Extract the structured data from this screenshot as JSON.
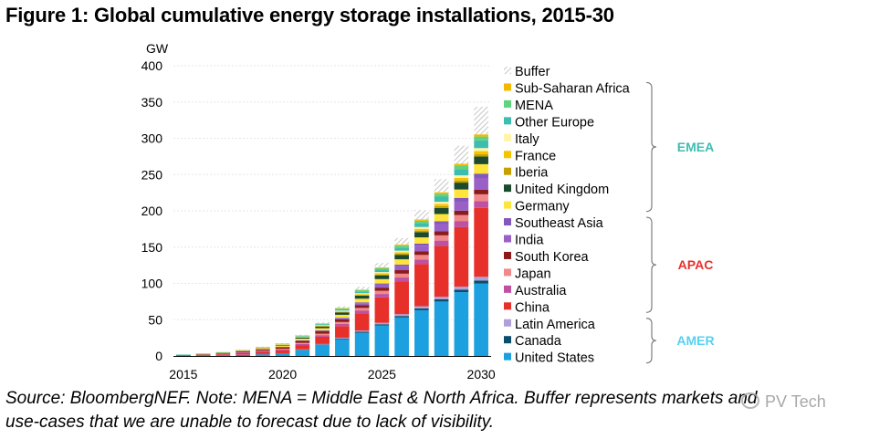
{
  "title": "Figure 1: Global cumulative energy storage installations, 2015-30",
  "caption": {
    "line1": "Source: BloombergNEF. Note: MENA = Middle East & North Africa. Buffer represents markets and",
    "line2": "use-cases that we are unable to forecast due to lack of visibility."
  },
  "watermark": "PV Tech",
  "colors": {
    "Buffer": "#d0d0d0",
    "Sub-Saharan Africa": "#f5b800",
    "MENA": "#5fd37e",
    "Other Europe": "#3dbdb0",
    "Italy": "#fff4a8",
    "France": "#f5c400",
    "Iberia": "#c7a000",
    "United Kingdom": "#1c4a2e",
    "Germany": "#ffe53b",
    "Southeast Asia": "#8458b8",
    "India": "#9a60c8",
    "South Korea": "#8b1a1a",
    "Japan": "#f08a8a",
    "Australia": "#c050a0",
    "China": "#e8302a",
    "Latin America": "#b0a0d8",
    "Canada": "#0a4e6a",
    "United States": "#1ca0e0",
    "EMEA": "#3dbdb0",
    "APAC": "#e8302a",
    "AMER": "#58d0f0"
  },
  "chart_data": {
    "type": "bar",
    "stacked": true,
    "ylabel": "GW",
    "ylim": [
      0,
      400
    ],
    "yticks": [
      0,
      50,
      100,
      150,
      200,
      250,
      300,
      350,
      400
    ],
    "categories": [
      "2015",
      "2016",
      "2017",
      "2018",
      "2019",
      "2020",
      "2021",
      "2022",
      "2023",
      "2024",
      "2025",
      "2026",
      "2027",
      "2028",
      "2029",
      "2030"
    ],
    "xtick_labels": [
      "2015",
      "2020",
      "2025",
      "2030"
    ],
    "grid": true,
    "legend_position": "right",
    "series": [
      {
        "name": "United States",
        "values": [
          0.6,
          0.9,
          1.2,
          1.5,
          2,
          3,
          8,
          15,
          23,
          32,
          42,
          53,
          63,
          75,
          88,
          100
        ]
      },
      {
        "name": "Canada",
        "values": [
          0.1,
          0.1,
          0.1,
          0.1,
          0.2,
          0.3,
          0.4,
          0.6,
          0.9,
          1.3,
          1.7,
          2.1,
          2.5,
          3,
          3.5,
          4
        ]
      },
      {
        "name": "Latin America",
        "values": [
          0.1,
          0.1,
          0.2,
          0.3,
          0.4,
          0.5,
          0.6,
          0.9,
          1.2,
          1.6,
          2,
          2.5,
          3,
          3.5,
          4,
          5
        ]
      },
      {
        "name": "China",
        "values": [
          0.3,
          0.5,
          1,
          2,
          3,
          4,
          6,
          10,
          16,
          24,
          35,
          45,
          58,
          70,
          82,
          95
        ]
      },
      {
        "name": "Australia",
        "values": [
          0.1,
          0.2,
          0.3,
          0.5,
          0.7,
          1,
          1.5,
          2.2,
          3,
          3.8,
          4.7,
          5.5,
          6.5,
          7.5,
          8.5,
          9.5
        ]
      },
      {
        "name": "Japan",
        "values": [
          0.2,
          0.3,
          0.4,
          0.6,
          0.8,
          1,
          1.5,
          2,
          2.7,
          3.5,
          4.4,
          5.3,
          6.2,
          7.2,
          8.2,
          9.3
        ]
      },
      {
        "name": "South Korea",
        "values": [
          0.1,
          0.3,
          0.6,
          1.5,
          2,
          2.3,
          2.8,
          3.2,
          3.6,
          4,
          4.4,
          4.8,
          5.2,
          5.6,
          6,
          6.5
        ]
      },
      {
        "name": "India",
        "values": [
          0,
          0,
          0,
          0.1,
          0.1,
          0.2,
          0.4,
          0.8,
          1.5,
          2.5,
          4,
          5.5,
          7.5,
          10,
          13,
          16
        ]
      },
      {
        "name": "Southeast Asia",
        "values": [
          0,
          0,
          0,
          0.1,
          0.1,
          0.2,
          0.3,
          0.5,
          0.8,
          1.2,
          1.7,
          2.3,
          3,
          3.8,
          4.7,
          6
        ]
      },
      {
        "name": "Germany",
        "values": [
          0.2,
          0.4,
          0.6,
          0.9,
          1.2,
          1.7,
          2.3,
          3,
          4,
          5,
          6,
          7.2,
          8.5,
          10,
          11.5,
          13
        ]
      },
      {
        "name": "United Kingdom",
        "values": [
          0.1,
          0.2,
          0.3,
          0.5,
          0.8,
          1.2,
          1.8,
          2.5,
          3.3,
          4.2,
          5.2,
          6.2,
          7.3,
          8.4,
          9.5,
          10.5
        ]
      },
      {
        "name": "Iberia",
        "values": [
          0,
          0,
          0,
          0,
          0.1,
          0.1,
          0.2,
          0.4,
          0.6,
          0.9,
          1.2,
          1.6,
          2,
          2.5,
          3,
          3.5
        ]
      },
      {
        "name": "France",
        "values": [
          0,
          0,
          0.1,
          0.1,
          0.2,
          0.3,
          0.4,
          0.6,
          0.9,
          1.2,
          1.6,
          2,
          2.4,
          2.9,
          3.4,
          4
        ]
      },
      {
        "name": "Italy",
        "values": [
          0,
          0,
          0.1,
          0.1,
          0.2,
          0.3,
          0.5,
          0.7,
          1,
          1.3,
          1.7,
          2.1,
          2.6,
          3.1,
          3.6,
          4.2
        ]
      },
      {
        "name": "Other Europe",
        "values": [
          0.1,
          0.1,
          0.2,
          0.3,
          0.4,
          0.6,
          0.9,
          1.3,
          1.8,
          2.5,
          3.3,
          4.3,
          5.5,
          7,
          8.7,
          10.5
        ]
      },
      {
        "name": "MENA",
        "values": [
          0,
          0,
          0.1,
          0.1,
          0.2,
          0.3,
          0.5,
          0.8,
          1.1,
          1.5,
          2,
          2.6,
          3.2,
          3.9,
          4.6,
          5.4
        ]
      },
      {
        "name": "Sub-Saharan Africa",
        "values": [
          0,
          0,
          0,
          0.1,
          0.1,
          0.2,
          0.3,
          0.5,
          0.7,
          0.9,
          1.2,
          1.5,
          1.8,
          2.2,
          2.6,
          3
        ]
      },
      {
        "name": "Buffer",
        "values": [
          0,
          0,
          0,
          0.1,
          0.2,
          0.4,
          0.8,
          1.5,
          2.5,
          4,
          6,
          9,
          13,
          18,
          25,
          38
        ]
      }
    ],
    "legend_order": [
      "Buffer",
      "Sub-Saharan Africa",
      "MENA",
      "Other Europe",
      "Italy",
      "France",
      "Iberia",
      "United Kingdom",
      "Germany",
      "Southeast Asia",
      "India",
      "South Korea",
      "Japan",
      "Australia",
      "China",
      "Latin America",
      "Canada",
      "United States"
    ],
    "groups": [
      {
        "name": "EMEA",
        "members": [
          "Sub-Saharan Africa",
          "MENA",
          "Other Europe",
          "Italy",
          "France",
          "Iberia",
          "United Kingdom",
          "Germany"
        ]
      },
      {
        "name": "APAC",
        "members": [
          "Southeast Asia",
          "India",
          "South Korea",
          "Japan",
          "Australia",
          "China"
        ]
      },
      {
        "name": "AMER",
        "members": [
          "Latin America",
          "Canada",
          "United States"
        ]
      }
    ]
  }
}
